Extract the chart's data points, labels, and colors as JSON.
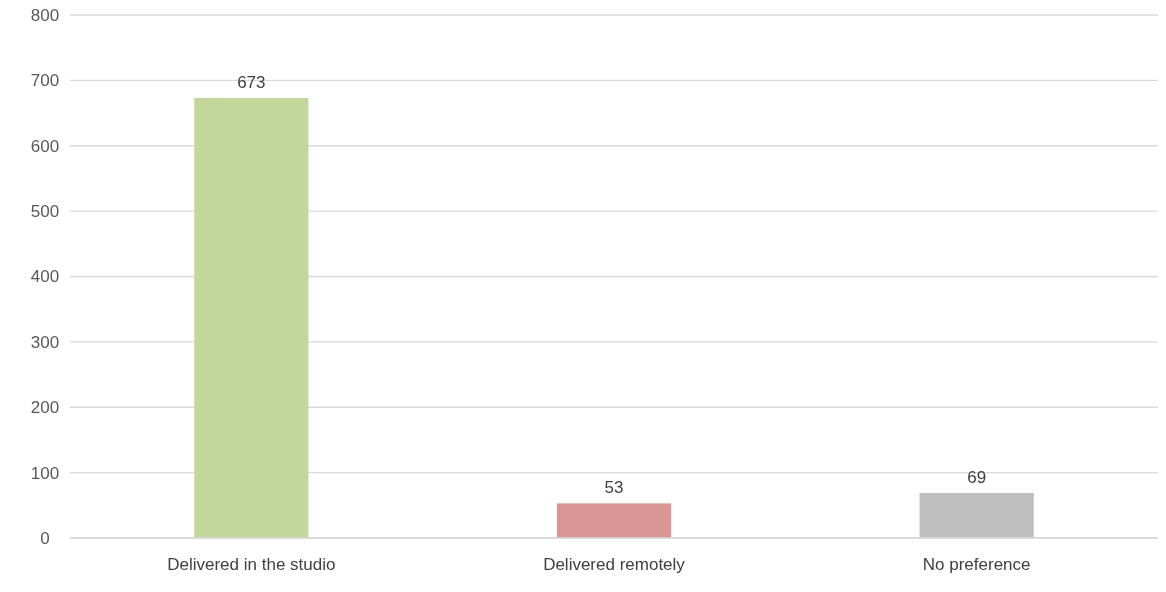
{
  "chart_data": {
    "type": "bar",
    "categories": [
      "Delivered in the studio",
      "Delivered remotely",
      "No preference"
    ],
    "values": [
      673,
      53,
      69
    ],
    "colors": [
      "#c4d79b",
      "#d99694",
      "#bfbfbf"
    ],
    "ylim": [
      0,
      800
    ],
    "yticks": [
      0,
      100,
      200,
      300,
      400,
      500,
      600,
      700,
      800
    ],
    "grid": "y",
    "data_labels": true
  }
}
